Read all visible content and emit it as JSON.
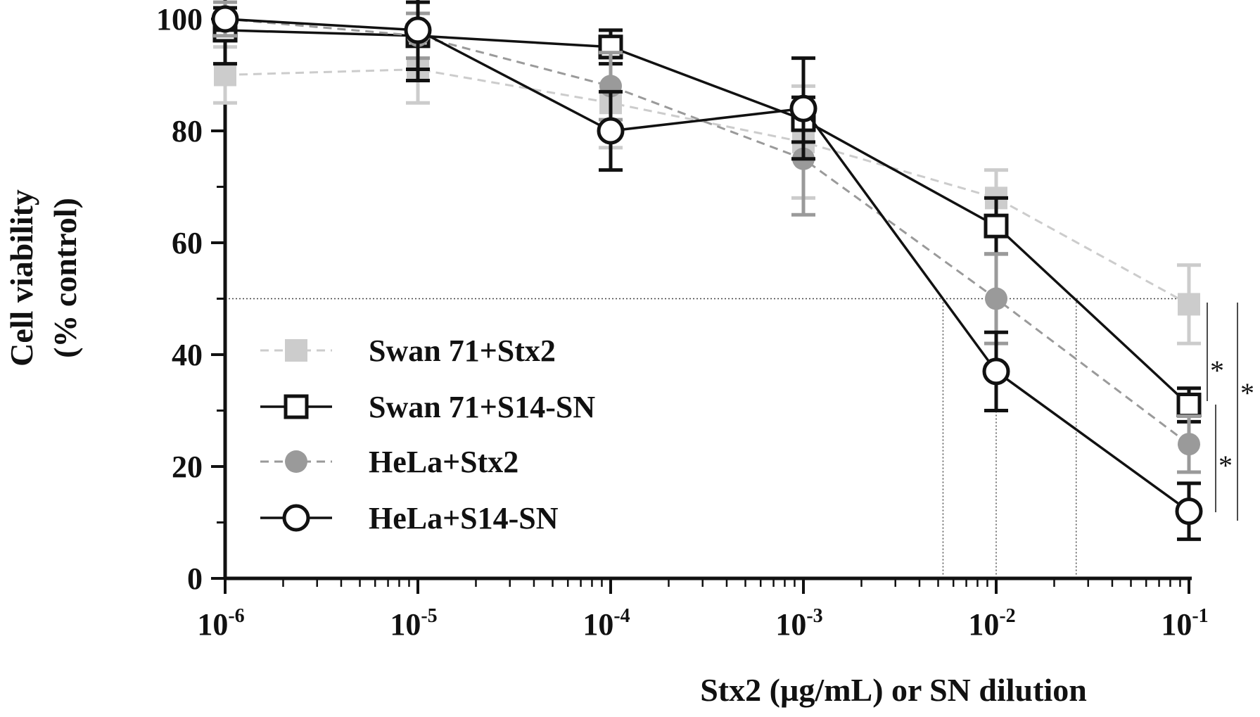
{
  "chart_data": {
    "type": "line",
    "title": "",
    "xlabel": "Stx2 (µg/mL) or SN dilution",
    "ylabel_line1": "Cell viability",
    "ylabel_line2": "(% control)",
    "x_scale": "log",
    "xlim": [
      1e-06,
      0.1
    ],
    "ylim": [
      0,
      100
    ],
    "x": [
      1e-06,
      1e-05,
      0.0001,
      0.001,
      0.01,
      0.1
    ],
    "x_ticks": [
      {
        "base": "10",
        "exp": "-6"
      },
      {
        "base": "10",
        "exp": "-5"
      },
      {
        "base": "10",
        "exp": "-4"
      },
      {
        "base": "10",
        "exp": "-3"
      },
      {
        "base": "10",
        "exp": "-2"
      },
      {
        "base": "10",
        "exp": "-1"
      }
    ],
    "y_ticks": [
      "0",
      "20",
      "40",
      "60",
      "80",
      "100"
    ],
    "grid": false,
    "legend_position": "left-center",
    "reference_lines": {
      "y": 50,
      "x": [
        0.0053,
        0.01,
        0.026
      ]
    },
    "series": [
      {
        "name": "Swan 71+Stx2",
        "marker": "filled-square",
        "line": "dashed",
        "color": "#cccccc",
        "values": [
          90,
          91,
          85,
          78,
          68,
          49
        ],
        "errors": [
          5,
          6,
          8,
          10,
          5,
          7
        ]
      },
      {
        "name": "Swan 71+S14-SN",
        "marker": "open-square",
        "line": "solid",
        "color": "#111111",
        "values": [
          98,
          97,
          95,
          82,
          63,
          31
        ],
        "errors": [
          6,
          6,
          3,
          4,
          5,
          3
        ]
      },
      {
        "name": "HeLa+Stx2",
        "marker": "filled-circle",
        "line": "dashed",
        "color": "#9a9a9a",
        "values": [
          100,
          97,
          88,
          75,
          50,
          24
        ],
        "errors": [
          3,
          4,
          6,
          10,
          8,
          5
        ]
      },
      {
        "name": "HeLa+S14-SN",
        "marker": "open-circle",
        "line": "solid",
        "color": "#111111",
        "values": [
          100,
          98,
          80,
          84,
          37,
          12
        ],
        "errors": [
          2,
          9,
          7,
          9,
          7,
          5
        ]
      }
    ],
    "annotations": [
      "*",
      "*",
      "*"
    ]
  }
}
